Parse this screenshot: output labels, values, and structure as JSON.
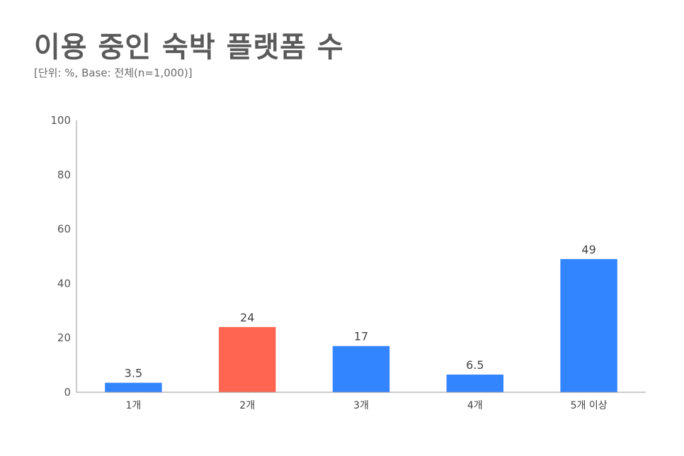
{
  "chart_data": {
    "type": "bar",
    "title": "이용 중인 숙박 플랫폼 수",
    "subtitle": "[단위: %, Base: 전체(n=1,000)]",
    "categories": [
      "1개",
      "2개",
      "3개",
      "4개",
      "5개 이상"
    ],
    "values": [
      3.5,
      24,
      17,
      6.5,
      49
    ],
    "value_labels": [
      "3.5",
      "24",
      "17",
      "6.5",
      "49"
    ],
    "ylim": [
      0,
      100
    ],
    "yticks": [
      0,
      20,
      40,
      60,
      80,
      100
    ],
    "grid": false,
    "legend": "none",
    "colors": {
      "default": "#3384ff",
      "highlight": "#ff6550",
      "axis": "#999999"
    },
    "highlight_index": 1
  }
}
